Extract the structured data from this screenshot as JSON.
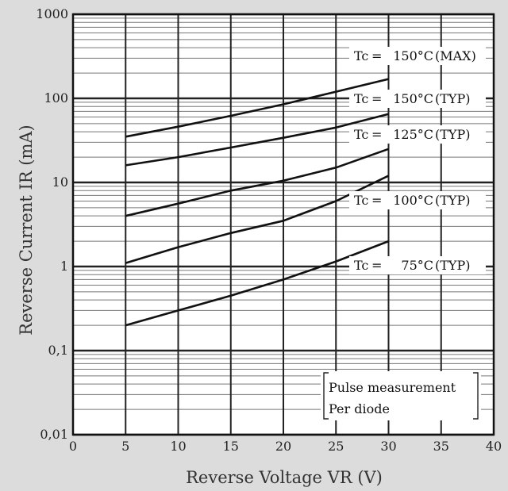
{
  "chart_data": {
    "type": "line",
    "title": "",
    "xlabel": "Reverse Voltage VR (V)",
    "ylabel": "Reverse Current IR (mA)",
    "x_axis": {
      "range": [
        0,
        40
      ],
      "ticks": [
        0,
        5,
        10,
        15,
        20,
        25,
        30,
        35,
        40
      ],
      "tick_labels": [
        "0",
        "5",
        "10",
        "15",
        "20",
        "25",
        "30",
        "35",
        "40"
      ]
    },
    "y_axis": {
      "scale": "log",
      "range": [
        0.01,
        1000
      ],
      "ticks": [
        0.01,
        0.1,
        1,
        10,
        100,
        1000
      ],
      "tick_labels": [
        "0,01",
        "0,1",
        "1",
        "10",
        "100",
        "1000"
      ]
    },
    "grid": true,
    "series": [
      {
        "name": "Tc = 150°C (MAX)",
        "x": [
          5,
          10,
          15,
          20,
          25,
          30
        ],
        "y": [
          35,
          46,
          62,
          85,
          120,
          170
        ]
      },
      {
        "name": "Tc = 150°C (TYP)",
        "x": [
          5,
          10,
          15,
          20,
          25,
          30
        ],
        "y": [
          16,
          20,
          26,
          34,
          45,
          65
        ]
      },
      {
        "name": "Tc = 125°C (TYP)",
        "x": [
          5,
          10,
          15,
          20,
          25,
          30
        ],
        "y": [
          4,
          5.6,
          8,
          10.5,
          15,
          25
        ]
      },
      {
        "name": "Tc = 100°C (TYP)",
        "x": [
          5,
          10,
          15,
          20,
          25,
          30
        ],
        "y": [
          1.1,
          1.7,
          2.5,
          3.5,
          6,
          12
        ]
      },
      {
        "name": "Tc = 75°C (TYP)",
        "x": [
          5,
          10,
          15,
          20,
          25,
          30
        ],
        "y": [
          0.2,
          0.3,
          0.45,
          0.7,
          1.15,
          2
        ]
      }
    ],
    "label_rows": [
      "Tc",
      "=",
      "150°C",
      "(MAX)",
      "150°C",
      "(TYP)",
      "125°C",
      "100°C",
      "75°C"
    ],
    "notes": [
      "Pulse measurement",
      "Per diode"
    ]
  },
  "style": {
    "background": "#dcdcdc",
    "plot_background": "#ffffff",
    "line_color": "#111111"
  }
}
